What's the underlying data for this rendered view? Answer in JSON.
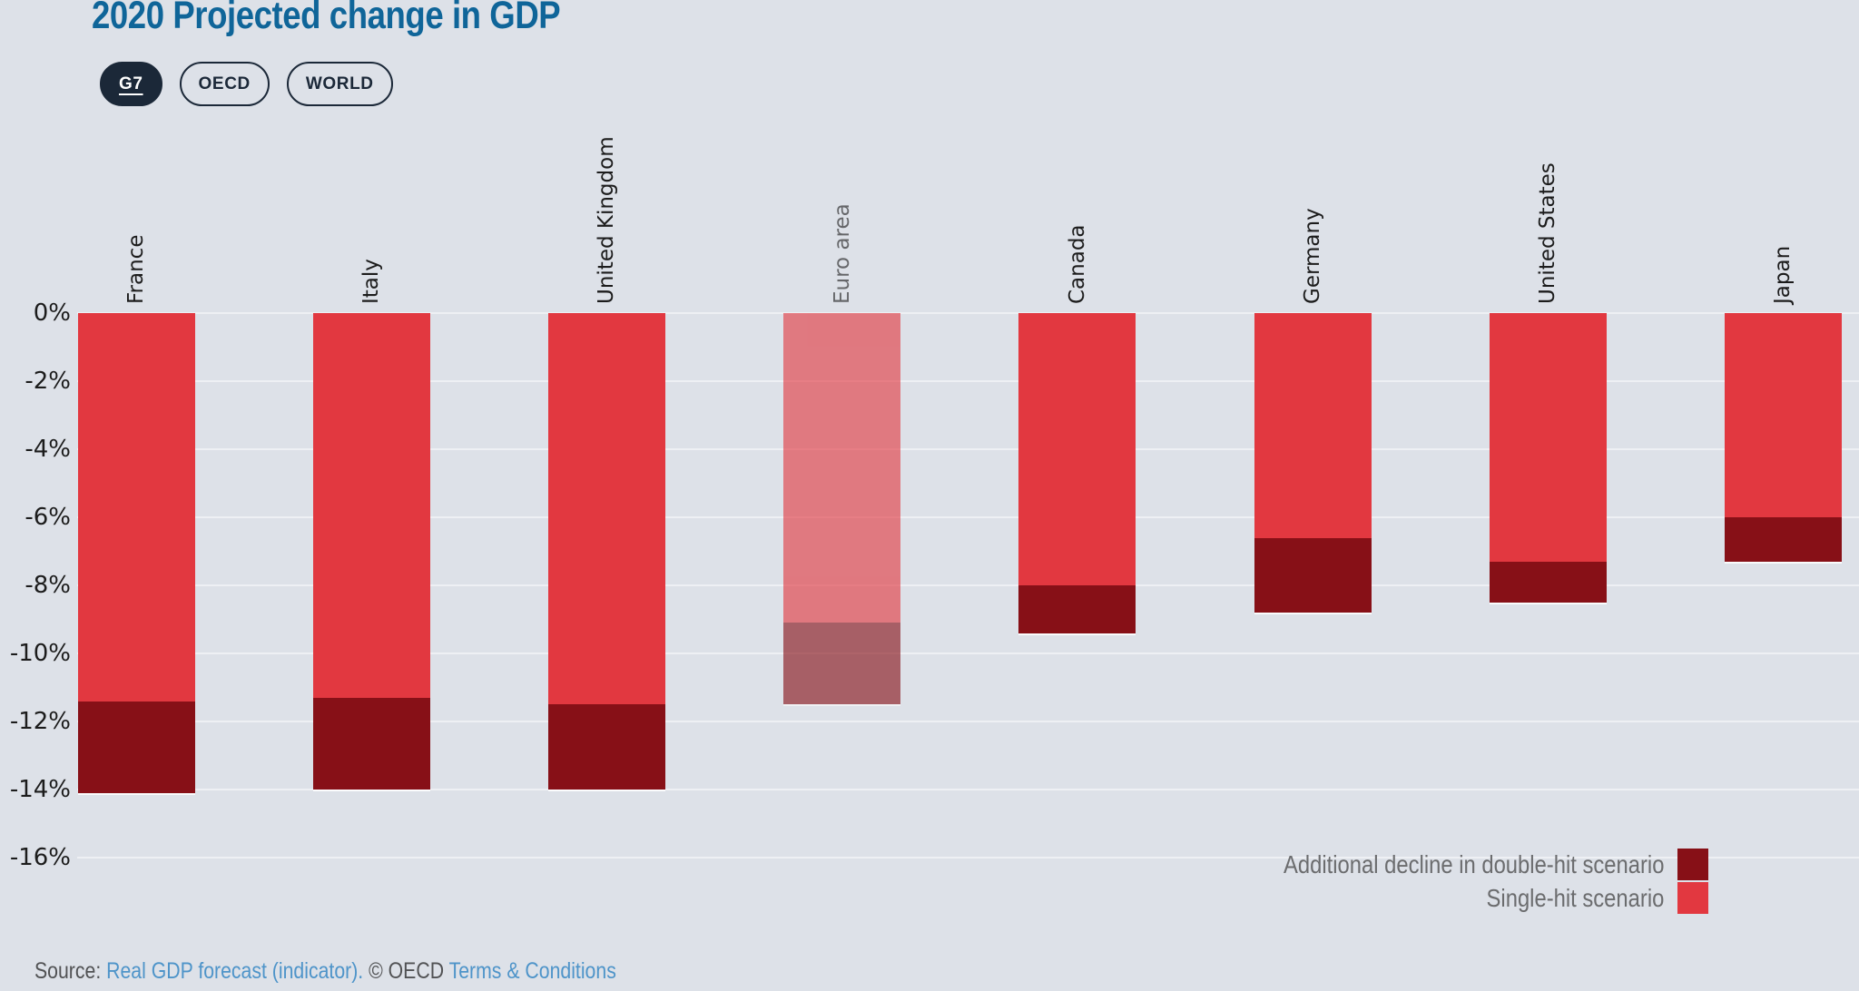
{
  "title": "2020 Projected change in GDP",
  "tabs": [
    {
      "label": "G7",
      "selected": true
    },
    {
      "label": "OECD",
      "selected": false
    },
    {
      "label": "WORLD",
      "selected": false
    }
  ],
  "chart_data": {
    "type": "bar",
    "stacked": true,
    "orientation": "vertical",
    "title": "2020 Projected change in GDP",
    "categories": [
      "France",
      "Italy",
      "United Kingdom",
      "Euro area",
      "Canada",
      "Germany",
      "United States",
      "Japan"
    ],
    "series": [
      {
        "name": "Single-hit scenario",
        "color": "#e23840",
        "values": [
          -11.4,
          -11.3,
          -11.5,
          -9.1,
          -8.0,
          -6.6,
          -7.3,
          -6.0
        ]
      },
      {
        "name": "Additional decline in double-hit scenario",
        "color": "#871017",
        "values": [
          -2.7,
          -2.7,
          -2.5,
          -2.4,
          -1.4,
          -2.2,
          -1.2,
          -1.3
        ]
      }
    ],
    "double_hit_totals": [
      -14.1,
      -14.0,
      -14.0,
      -11.5,
      -9.4,
      -8.8,
      -8.5,
      -7.3
    ],
    "muted_categories": [
      "Euro area"
    ],
    "unit": "%",
    "yticks": [
      "0%",
      "-2%",
      "-4%",
      "-6%",
      "-8%",
      "-10%",
      "-12%",
      "-14%",
      "-16%"
    ],
    "ylim": [
      -16,
      0
    ],
    "grid": true,
    "legend_position": "bottom-right"
  },
  "legend": [
    {
      "label": "Additional decline in double-hit scenario",
      "color": "#871017"
    },
    {
      "label": "Single-hit scenario",
      "color": "#e23840"
    }
  ],
  "source": {
    "parts": [
      {
        "text": "Source: ",
        "link": false
      },
      {
        "text": "Real GDP forecast (indicator).",
        "link": true
      },
      {
        "text": " © OECD ",
        "link": false
      },
      {
        "text": "Terms & Conditions",
        "link": true
      }
    ]
  },
  "colors": {
    "background": "#dde1e8",
    "gridline": "#eef0f4",
    "title": "#0f6599",
    "navy": "#1b2838",
    "single_hit": "#e23840",
    "double_hit": "#871017",
    "muted_opacity": 0.62,
    "legend_text": "#6b6c6e",
    "link": "#4e94c9",
    "text": "#1c1c1c"
  }
}
